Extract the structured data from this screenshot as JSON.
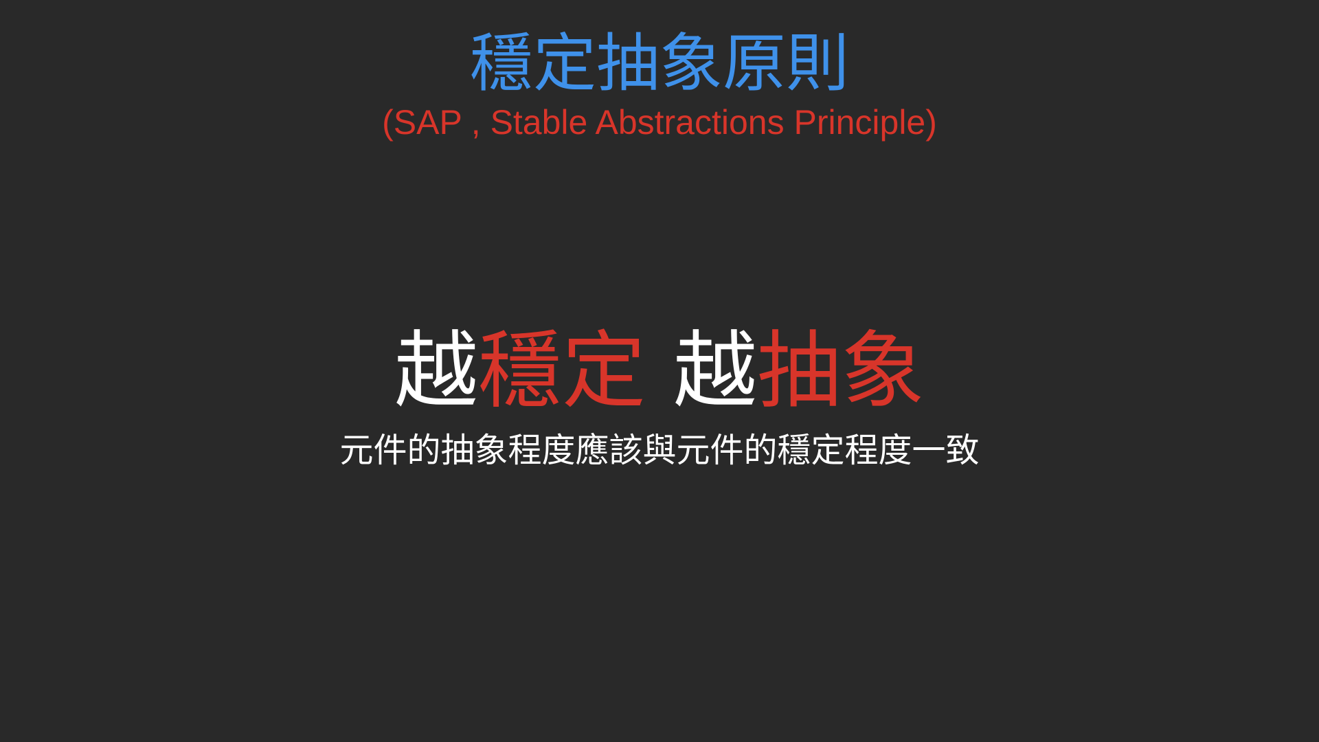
{
  "slide": {
    "title": "穩定抽象原則",
    "subtitle": "(SAP , Stable Abstractions Principle)",
    "headline": {
      "part1_prefix": "越",
      "part1_emphasis": "穩定",
      "part2_prefix": "越",
      "part2_emphasis": "抽象"
    },
    "description": "元件的抽象程度應該與元件的穩定程度一致"
  },
  "colors": {
    "background": "#292929",
    "title": "#3f91ea",
    "accent_red": "#d8352a",
    "text_white": "#ffffff"
  }
}
